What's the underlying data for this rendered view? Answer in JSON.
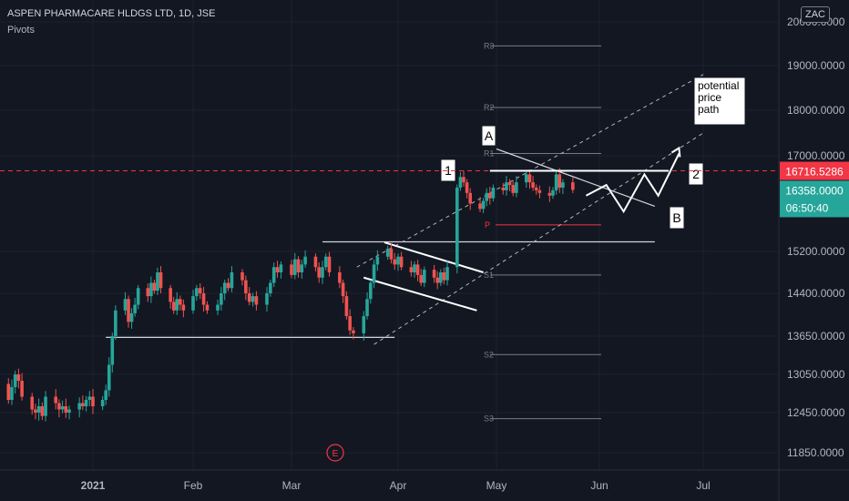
{
  "header": {
    "symbol": "ASPEN PHARMACARE HLDGS LTD, 1D, JSE",
    "indicator": "Pivots",
    "currency": "ZAC"
  },
  "price_badges": {
    "last_price": "16358.0000",
    "countdown": "06:50:40",
    "horizontal_line_price": "16716.5286"
  },
  "annotations": {
    "label_1": "1",
    "label_2": "2",
    "label_A": "A",
    "label_B": "B",
    "potential_path": [
      "potential",
      "price",
      "path"
    ],
    "event_marker": "E"
  },
  "colors": {
    "background": "#131722",
    "up": "#26a69a",
    "down": "#ef5350",
    "dashed_line": "#f23645",
    "last_badge": "#26a69a",
    "line_badge": "#f23645"
  },
  "chart_data": {
    "type": "candlestick",
    "title": "ASPEN PHARMACARE HLDGS LTD, 1D, JSE",
    "ylim": [
      11600,
      20300
    ],
    "y_ticks": [
      {
        "value": 11850,
        "label": "11850.0000"
      },
      {
        "value": 12450,
        "label": "12450.0000"
      },
      {
        "value": 13050,
        "label": "13050.0000"
      },
      {
        "value": 13650,
        "label": "13650.0000"
      },
      {
        "value": 14400,
        "label": "14400.0000"
      },
      {
        "value": 15200,
        "label": "15200.0000"
      },
      {
        "value": 17000,
        "label": "17000.0000"
      },
      {
        "value": 18000,
        "label": "18000.0000"
      },
      {
        "value": 19000,
        "label": "19000.0000"
      },
      {
        "value": 20000,
        "label": "20000.0000"
      }
    ],
    "x_ticks": [
      {
        "date": "2021-01-01",
        "label": "2021",
        "bold": true
      },
      {
        "date": "2021-02-01",
        "label": "Feb",
        "bold": false
      },
      {
        "date": "2021-03-01",
        "label": "Mar",
        "bold": false
      },
      {
        "date": "2021-04-01",
        "label": "Apr",
        "bold": false
      },
      {
        "date": "2021-05-01",
        "label": "May",
        "bold": false
      },
      {
        "date": "2021-06-01",
        "label": "Jun",
        "bold": false
      },
      {
        "date": "2021-07-01",
        "label": "Jul",
        "bold": false
      }
    ],
    "closes": [
      12700,
      12800,
      12750,
      12900,
      12650,
      12850,
      13050,
      12950,
      12700,
      12500,
      12450,
      12550,
      12400,
      12700,
      12600,
      12500,
      12550,
      12450,
      12500,
      12600,
      12550,
      12650,
      12700,
      12550,
      12650,
      12800,
      13200,
      13650,
      14100,
      14300,
      13900,
      14050,
      14200,
      14500,
      14350,
      14600,
      14450,
      14800,
      14500,
      14250,
      14100,
      14300,
      14200,
      14100,
      14350,
      14500,
      14400,
      14200,
      14100,
      14200,
      14400,
      14600,
      14500,
      14800,
      14650,
      14400,
      14250,
      14350,
      14200,
      14400,
      14600,
      14900,
      14800,
      14950,
      14750,
      15050,
      14800,
      14950,
      15100,
      14900,
      14700,
      14900,
      15100,
      14800,
      14600,
      14350,
      14000,
      13750,
      13700,
      14000,
      14300,
      14600,
      14950,
      15100,
      15250,
      15050,
      14950,
      15100,
      14900,
      14800,
      14950,
      14750,
      14600,
      14850,
      14700,
      14600,
      14800,
      14650,
      14900,
      16400,
      16600,
      16500,
      16300,
      16100,
      16000,
      16150,
      16300,
      16200,
      16400,
      16350,
      16500,
      16450,
      16300,
      16500,
      16650,
      16500,
      16400,
      16350,
      16300,
      16250,
      16350,
      16650,
      16400,
      16500,
      16358
    ],
    "pivots": [
      {
        "label": "R3",
        "value": 19450
      },
      {
        "label": "R2",
        "value": 18060
      },
      {
        "label": "R1",
        "value": 17050
      },
      {
        "label": "P",
        "value": 15700
      },
      {
        "label": "S1",
        "value": 14750
      },
      {
        "label": "S2",
        "value": 13360
      },
      {
        "label": "S3",
        "value": 12360
      }
    ],
    "horizontal_line": 16716.5286,
    "last_price": 16358
  }
}
